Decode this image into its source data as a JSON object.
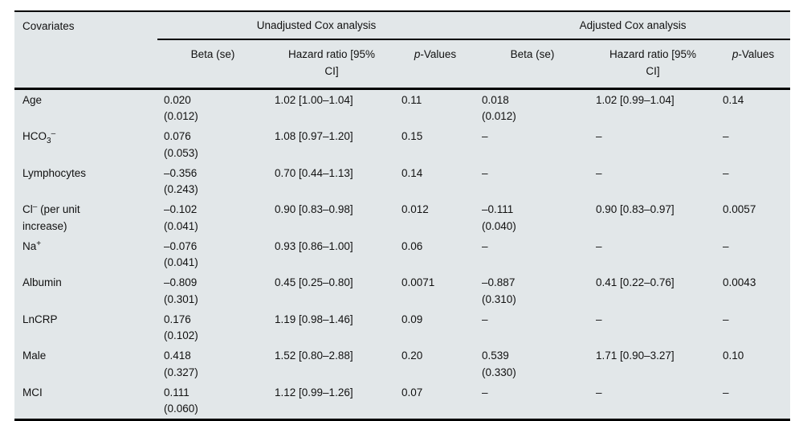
{
  "table": {
    "header": {
      "covariates": "Covariates",
      "unadjusted_group": "Unadjusted Cox analysis",
      "adjusted_group": "Adjusted Cox analysis",
      "beta": "Beta (se)",
      "hazard": "Hazard ratio [95%\nCI]",
      "p_italic": "p",
      "p_rest": "-Values"
    },
    "rows": [
      {
        "cov": {
          "base": "Age",
          "sub": "",
          "sup": "",
          "rest": ""
        },
        "u_beta": "0.020\n(0.012)",
        "u_hr": "1.02 [1.00–1.04]",
        "u_p": "0.11",
        "a_beta": "0.018\n(0.012)",
        "a_hr": "1.02 [0.99–1.04]",
        "a_p": "0.14"
      },
      {
        "cov": {
          "base": "HCO",
          "sub": "3",
          "sup": "–",
          "rest": ""
        },
        "u_beta": "0.076\n(0.053)",
        "u_hr": "1.08 [0.97–1.20]",
        "u_p": "0.15",
        "a_beta": "–",
        "a_hr": "–",
        "a_p": "–"
      },
      {
        "cov": {
          "base": "Lymphocytes",
          "sub": "",
          "sup": "",
          "rest": ""
        },
        "u_beta": "–0.356\n(0.243)",
        "u_hr": "0.70 [0.44–1.13]",
        "u_p": "0.14",
        "a_beta": "–",
        "a_hr": "–",
        "a_p": "–"
      },
      {
        "cov": {
          "base": "Cl",
          "sub": "",
          "sup": "–",
          "rest": " (per unit\nincrease)"
        },
        "u_beta": "–0.102\n(0.041)",
        "u_hr": "0.90 [0.83–0.98]",
        "u_p": "0.012",
        "a_beta": "–0.111\n(0.040)",
        "a_hr": "0.90 [0.83–0.97]",
        "a_p": "0.0057"
      },
      {
        "cov": {
          "base": "Na",
          "sub": "",
          "sup": "+",
          "rest": ""
        },
        "u_beta": "–0.076\n(0.041)",
        "u_hr": "0.93 [0.86–1.00]",
        "u_p": "0.06",
        "a_beta": "–",
        "a_hr": "–",
        "a_p": "–"
      },
      {
        "cov": {
          "base": "Albumin",
          "sub": "",
          "sup": "",
          "rest": ""
        },
        "u_beta": "–0.809\n(0.301)",
        "u_hr": "0.45 [0.25–0.80]",
        "u_p": "0.0071",
        "a_beta": "–0.887\n(0.310)",
        "a_hr": "0.41 [0.22–0.76]",
        "a_p": "0.0043"
      },
      {
        "cov": {
          "base": "LnCRP",
          "sub": "",
          "sup": "",
          "rest": ""
        },
        "u_beta": "0.176\n(0.102)",
        "u_hr": "1.19 [0.98–1.46]",
        "u_p": "0.09",
        "a_beta": "–",
        "a_hr": "–",
        "a_p": "–"
      },
      {
        "cov": {
          "base": "Male",
          "sub": "",
          "sup": "",
          "rest": ""
        },
        "u_beta": "0.418\n(0.327)",
        "u_hr": "1.52 [0.80–2.88]",
        "u_p": "0.20",
        "a_beta": "0.539\n(0.330)",
        "a_hr": "1.71 [0.90–3.27]",
        "a_p": "0.10"
      },
      {
        "cov": {
          "base": "MCI",
          "sub": "",
          "sup": "",
          "rest": ""
        },
        "u_beta": "0.111\n(0.060)",
        "u_hr": "1.12 [0.99–1.26]",
        "u_p": "0.07",
        "a_beta": "–",
        "a_hr": "–",
        "a_p": "–"
      }
    ]
  },
  "colors": {
    "table_background": "#e2e7e9",
    "rule": "#000000",
    "text": "#111111",
    "page_background": "#ffffff"
  }
}
